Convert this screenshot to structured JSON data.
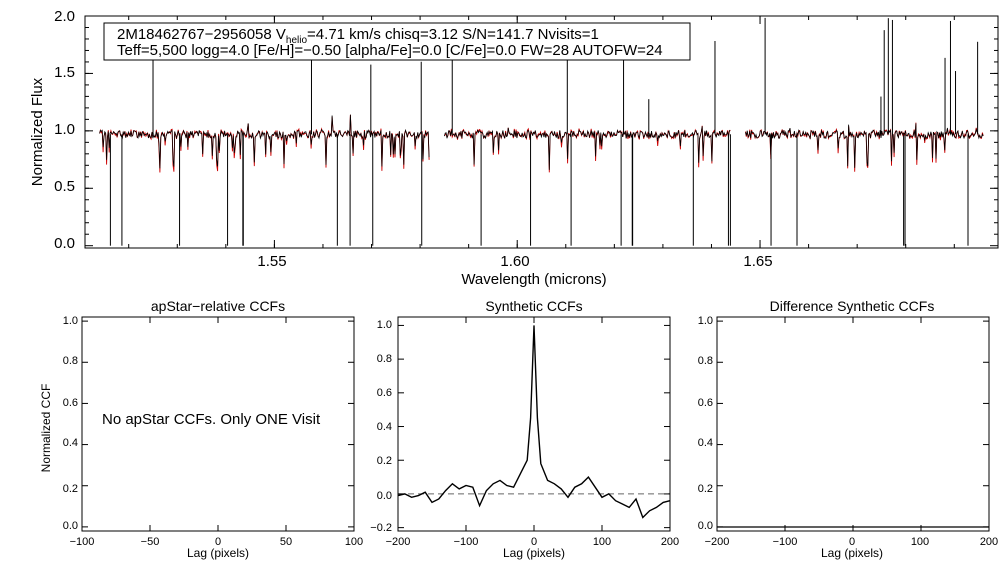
{
  "chart_data": [
    {
      "type": "line",
      "panel": "spectrum",
      "xlabel": "Wavelength (microns)",
      "ylabel": "Normalized Flux",
      "xlim": [
        1.511,
        1.699
      ],
      "ylim": [
        -0.02,
        2.0
      ],
      "x_ticks": [
        "1.55",
        "1.60",
        "1.65"
      ],
      "y_ticks": [
        "0.0",
        "0.5",
        "1.0",
        "1.5",
        "2.0"
      ],
      "chips": [
        [
          1.514,
          1.582
        ],
        [
          1.585,
          1.644
        ],
        [
          1.647,
          1.696
        ]
      ],
      "series": [
        {
          "name": "observed spectrum",
          "color": "#000000"
        },
        {
          "name": "synthetic model",
          "color": "#cc0000"
        }
      ],
      "info_box": {
        "line1_a": "2M18462767−2956058  V",
        "line1_sub": "helio",
        "line1_b": "=4.71 km/s  chisq=3.12  S/N=141.7  Nvisits=1",
        "line2": "Teff=5,500 logg=4.0 [Fe/H]=−0.50 [alpha/Fe]=0.0 [C/Fe]=0.0 FW=28 AUTOFW=24"
      }
    },
    {
      "type": "line",
      "panel": "apstar",
      "title": "apStar−relative CCFs",
      "xlabel": "Lag (pixels)",
      "ylabel": "Normalized CCF",
      "xlim": [
        -100,
        100
      ],
      "ylim": [
        -0.02,
        1.02
      ],
      "x_ticks": [
        "−100",
        "−50",
        "0",
        "50",
        "100"
      ],
      "y_ticks": [
        "0.0",
        "0.2",
        "0.4",
        "0.6",
        "0.8",
        "1.0"
      ],
      "annotation": "No apStar CCFs.  Only ONE Visit"
    },
    {
      "type": "line",
      "panel": "synthetic",
      "title": "Synthetic CCFs",
      "xlabel": "Lag (pixels)",
      "xlim": [
        -200,
        200
      ],
      "ylim": [
        -0.22,
        1.05
      ],
      "x_ticks": [
        "−200",
        "−100",
        "0",
        "100",
        "200"
      ],
      "y_ticks": [
        "−0.2",
        "0.0",
        "0.2",
        "0.4",
        "0.6",
        "0.8",
        "1.0"
      ],
      "peak": {
        "x": 0,
        "y": 1.0
      },
      "baseline": 0.0,
      "x": [
        -200,
        -190,
        -180,
        -170,
        -160,
        -150,
        -140,
        -130,
        -120,
        -110,
        -100,
        -90,
        -80,
        -70,
        -60,
        -50,
        -40,
        -30,
        -20,
        -10,
        -5,
        0,
        5,
        10,
        20,
        30,
        40,
        50,
        60,
        70,
        80,
        90,
        100,
        110,
        120,
        130,
        140,
        150,
        160,
        170,
        180,
        190,
        200
      ],
      "y": [
        -0.01,
        0.0,
        -0.02,
        -0.01,
        0.01,
        -0.05,
        -0.03,
        0.02,
        0.06,
        0.03,
        0.05,
        0.04,
        -0.07,
        0.02,
        0.06,
        0.08,
        0.05,
        0.04,
        0.12,
        0.2,
        0.45,
        1.0,
        0.45,
        0.18,
        0.08,
        0.06,
        0.03,
        -0.02,
        0.04,
        0.06,
        0.1,
        0.04,
        -0.02,
        0.0,
        -0.04,
        -0.06,
        -0.08,
        -0.03,
        -0.14,
        -0.1,
        -0.08,
        -0.05,
        -0.04
      ]
    },
    {
      "type": "line",
      "panel": "difference",
      "title": "Difference Synthetic CCFs",
      "xlabel": "Lag (pixels)",
      "xlim": [
        -200,
        200
      ],
      "ylim": [
        -0.02,
        1.02
      ],
      "x_ticks": [
        "−200",
        "−100",
        "0",
        "100",
        "200"
      ],
      "y_ticks": [
        "0.0",
        "0.2",
        "0.4",
        "0.6",
        "0.8",
        "1.0"
      ],
      "baseline": 0.0
    }
  ]
}
